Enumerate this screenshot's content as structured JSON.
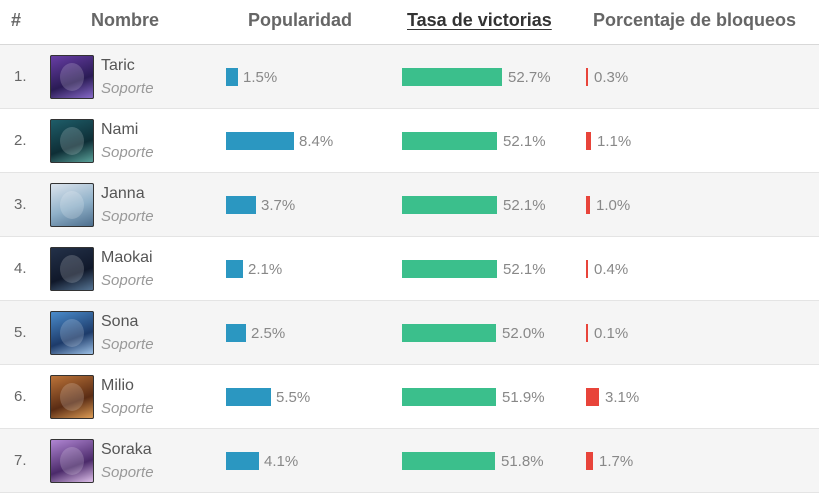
{
  "header": {
    "rank": "#",
    "name": "Nombre",
    "popularity": "Popularidad",
    "win_rate": "Tasa de victorias",
    "ban_rate": "Porcentaje de bloqueos"
  },
  "colors": {
    "popularity_bar": "#2b97c1",
    "win_rate_bar": "#3bbf8c",
    "ban_rate_bar": "#e8443a"
  },
  "rows": [
    {
      "rank": "1.",
      "name": "Taric",
      "role": "Soporte",
      "popularity": "1.5%",
      "pop_value": 1.5,
      "win_rate": "52.7%",
      "win_value": 52.7,
      "ban_rate": "0.3%",
      "ban_value": 0.3,
      "avatar_icon": "taric-portrait-icon"
    },
    {
      "rank": "2.",
      "name": "Nami",
      "role": "Soporte",
      "popularity": "8.4%",
      "pop_value": 8.4,
      "win_rate": "52.1%",
      "win_value": 52.1,
      "ban_rate": "1.1%",
      "ban_value": 1.1,
      "avatar_icon": "nami-portrait-icon"
    },
    {
      "rank": "3.",
      "name": "Janna",
      "role": "Soporte",
      "popularity": "3.7%",
      "pop_value": 3.7,
      "win_rate": "52.1%",
      "win_value": 52.1,
      "ban_rate": "1.0%",
      "ban_value": 1.0,
      "avatar_icon": "janna-portrait-icon"
    },
    {
      "rank": "4.",
      "name": "Maokai",
      "role": "Soporte",
      "popularity": "2.1%",
      "pop_value": 2.1,
      "win_rate": "52.1%",
      "win_value": 52.1,
      "ban_rate": "0.4%",
      "ban_value": 0.4,
      "avatar_icon": "maokai-portrait-icon"
    },
    {
      "rank": "5.",
      "name": "Sona",
      "role": "Soporte",
      "popularity": "2.5%",
      "pop_value": 2.5,
      "win_rate": "52.0%",
      "win_value": 52.0,
      "ban_rate": "0.1%",
      "ban_value": 0.1,
      "avatar_icon": "sona-portrait-icon"
    },
    {
      "rank": "6.",
      "name": "Milio",
      "role": "Soporte",
      "popularity": "5.5%",
      "pop_value": 5.5,
      "win_rate": "51.9%",
      "win_value": 51.9,
      "ban_rate": "3.1%",
      "ban_value": 3.1,
      "avatar_icon": "milio-portrait-icon"
    },
    {
      "rank": "7.",
      "name": "Soraka",
      "role": "Soporte",
      "popularity": "4.1%",
      "pop_value": 4.1,
      "win_rate": "51.8%",
      "win_value": 51.8,
      "ban_rate": "1.7%",
      "ban_value": 1.7,
      "avatar_icon": "soraka-portrait-icon"
    }
  ]
}
